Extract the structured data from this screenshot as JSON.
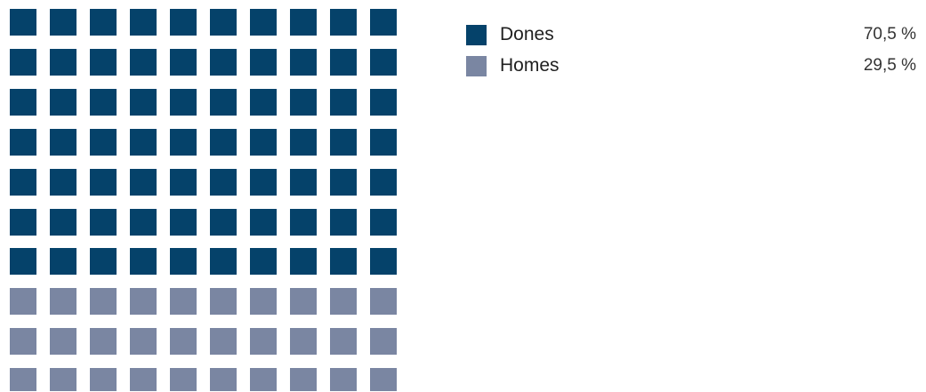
{
  "chart_data": {
    "type": "waffle",
    "grid": {
      "rows": 10,
      "cols": 10
    },
    "series": [
      {
        "name": "Dones",
        "value_label": "70,5 %",
        "percent": 70.5,
        "cells": 70,
        "color": "#05426a"
      },
      {
        "name": "Homes",
        "value_label": "29,5 %",
        "percent": 29.5,
        "cells": 30,
        "color": "#7a86a2"
      }
    ],
    "legend_position": "top-right"
  }
}
